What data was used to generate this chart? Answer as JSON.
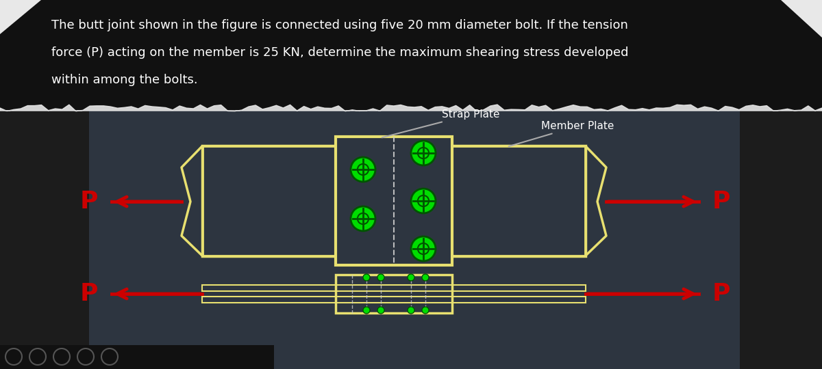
{
  "bg_dark": "#1c1c1c",
  "bg_diagram": "#2d3540",
  "text_color": "#ffffff",
  "title_text_line1": "The butt joint shown in the figure is connected using five 20 mm diameter bolt. If the tension",
  "title_text_line2": "force (P) acting on the member is 25 KN, determine the maximum shearing stress developed",
  "title_text_line3": "within among the bolts.",
  "plate_color": "#e8e070",
  "plate_fill": "#2d3540",
  "arrow_color": "#cc0000",
  "bolt_color": "#00dd00",
  "bolt_dark": "#005500",
  "label_strap": "Strap Plate",
  "label_member": "Member Plate",
  "label_p": "P",
  "dash_color": "#cccccc",
  "title_bg": "#111111",
  "torn_color": "#e8e8e8",
  "gray_line": "#aaaaaa"
}
